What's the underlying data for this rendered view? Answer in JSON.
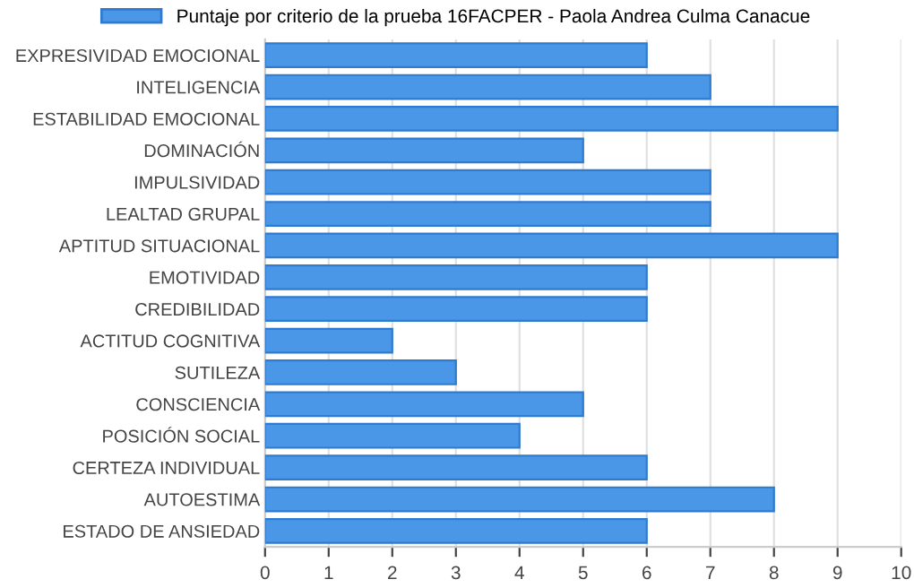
{
  "chart_data": {
    "type": "bar",
    "orientation": "horizontal",
    "categories": [
      "EXPRESIVIDAD EMOCIONAL",
      "INTELIGENCIA",
      "ESTABILIDAD EMOCIONAL",
      "DOMINACIÓN",
      "IMPULSIVIDAD",
      "LEALTAD GRUPAL",
      "APTITUD SITUACIONAL",
      "EMOTIVIDAD",
      "CREDIBILIDAD",
      "ACTITUD COGNITIVA",
      "SUTILEZA",
      "CONSCIENCIA",
      "POSICIÓN SOCIAL",
      "CERTEZA INDIVIDUAL",
      "AUTOESTIMA",
      "ESTADO DE ANSIEDAD"
    ],
    "series": [
      {
        "name": "Puntaje por criterio de la prueba 16FACPER - Paola Andrea Culma Canacue",
        "color": "#4a97e8",
        "values": [
          6,
          7,
          9,
          5,
          7,
          7,
          9,
          6,
          6,
          2,
          3,
          5,
          4,
          6,
          8,
          6
        ]
      }
    ],
    "xlim": [
      0,
      10
    ],
    "xticks": [
      0,
      1,
      2,
      3,
      4,
      5,
      6,
      7,
      8,
      9,
      10
    ],
    "grid": "x",
    "legend": "top"
  }
}
